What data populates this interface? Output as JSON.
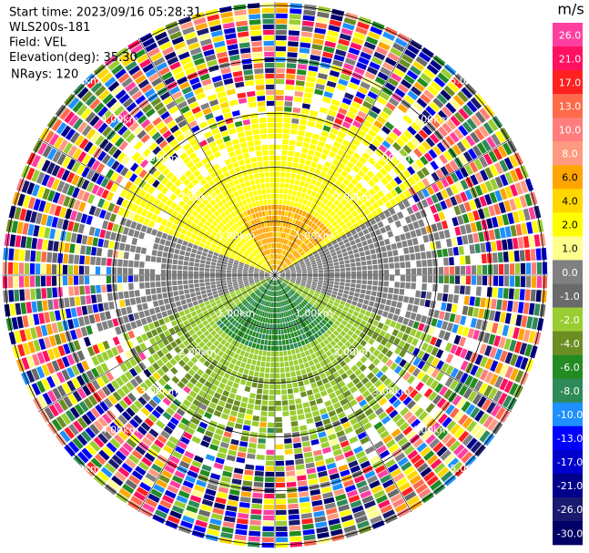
{
  "header": {
    "lines": [
      "Start time: 2023/09/16 05:28:31",
      "WLS200s-181",
      "Field: VEL",
      "Elevation(deg): 35.30",
      "NRays: 120"
    ]
  },
  "rings": {
    "labels": [
      "1.00km",
      "2.00km",
      "3.00km",
      "4.00km",
      "5.00km"
    ]
  },
  "colorbar": {
    "unit": "m/s",
    "labels": [
      "26.0",
      "21.0",
      "17.0",
      "13.0",
      "10.0",
      "8.0",
      "6.0",
      "4.0",
      "2.0",
      "1.0",
      "0.0",
      "-1.0",
      "-2.0",
      "-4.0",
      "-6.0",
      "-8.0",
      "-10.0",
      "-13.0",
      "-17.0",
      "-21.0",
      "-26.0",
      "-30.0"
    ]
  }
}
